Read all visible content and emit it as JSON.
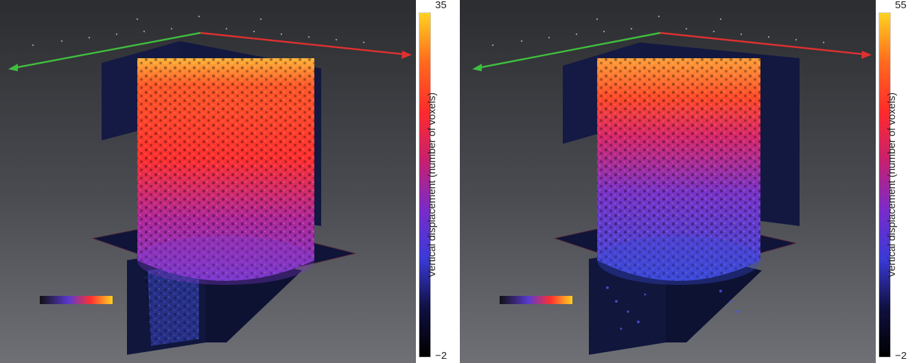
{
  "panels": [
    {
      "id": "left",
      "colorbar": {
        "label": "Vertical displacement (number of voxels)",
        "max": "35",
        "min": "−2",
        "colors": [
          "#ffd21f",
          "#ff6a1e",
          "#ff2b2b",
          "#c8206e",
          "#7a2bc9",
          "#3a3ad8",
          "#101042",
          "#000000"
        ]
      },
      "scene": {
        "theme": "hot",
        "top_color": "#ffb43a",
        "mid_color": "#ff3030",
        "low_color": "#8a32c8",
        "bottom_color": "#5a48d4"
      }
    },
    {
      "id": "right",
      "colorbar": {
        "label": "Vertical displacement (number of voxels)",
        "max": "55",
        "min": "−2",
        "colors": [
          "#ffd21f",
          "#ff6a1e",
          "#ff2b2b",
          "#c8206e",
          "#7a2bc9",
          "#3a3ad8",
          "#101042",
          "#000000"
        ]
      },
      "scene": {
        "theme": "cool",
        "top_color": "#ffa03a",
        "mid_color": "#d8286a",
        "low_color": "#6a3ad0",
        "bottom_color": "#3c4ad8"
      }
    }
  ]
}
